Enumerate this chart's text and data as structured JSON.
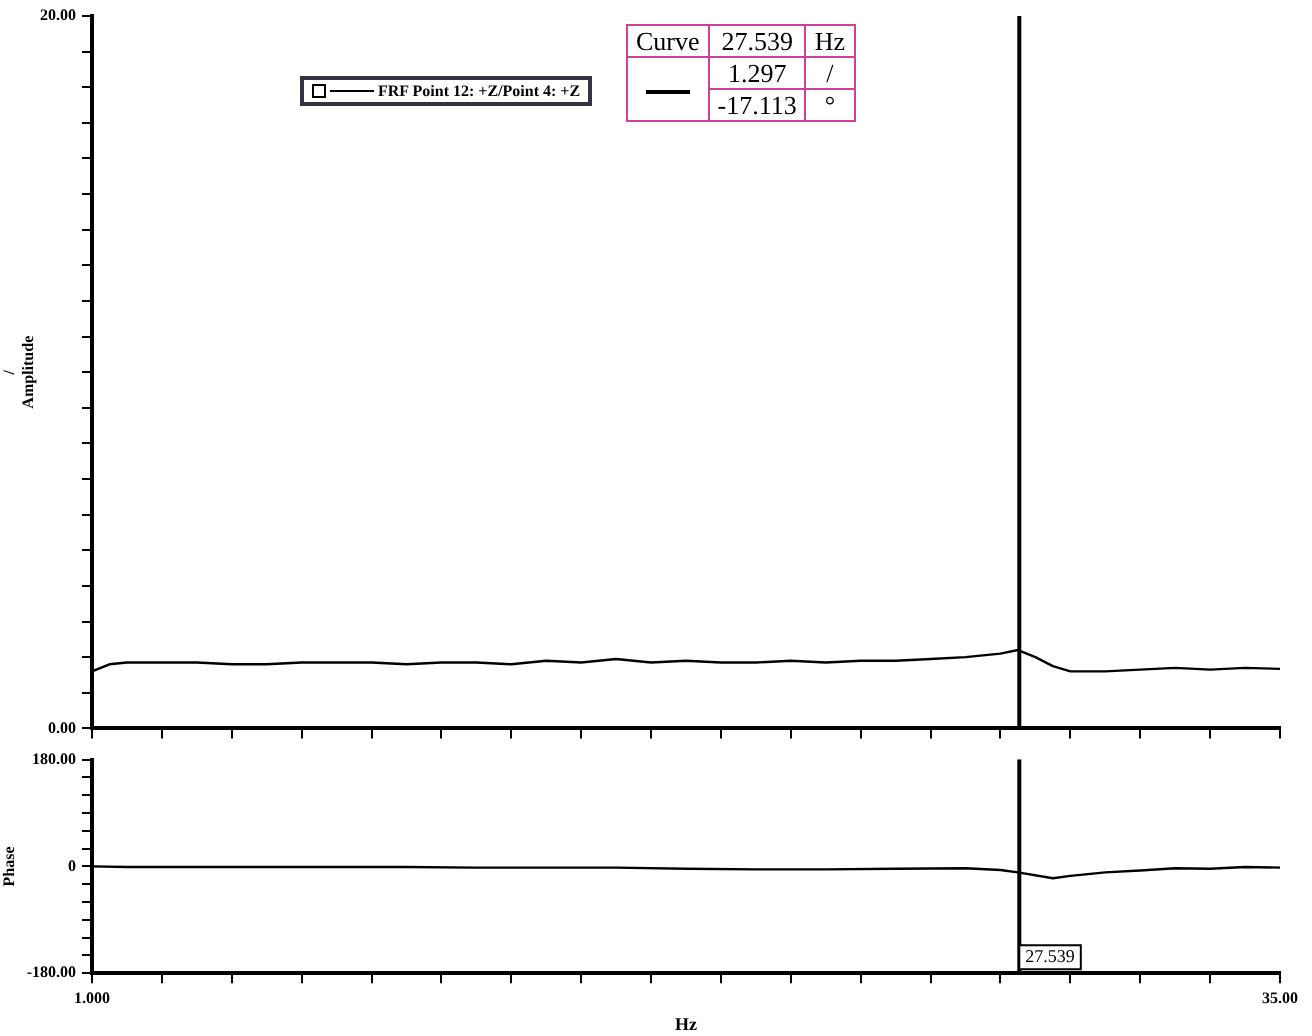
{
  "chart_data": [
    {
      "type": "line",
      "ylabel": "/\nAmplitude",
      "xlim": [
        1,
        35
      ],
      "ylim": [
        0,
        20
      ],
      "xticks": [
        {
          "value": 1,
          "label": null
        },
        {
          "value": 3,
          "label": null
        },
        {
          "value": 5,
          "label": null
        },
        {
          "value": 7,
          "label": null
        },
        {
          "value": 9,
          "label": null
        },
        {
          "value": 11,
          "label": null
        },
        {
          "value": 13,
          "label": null
        },
        {
          "value": 15,
          "label": null
        },
        {
          "value": 17,
          "label": null
        },
        {
          "value": 19,
          "label": null
        },
        {
          "value": 21,
          "label": null
        },
        {
          "value": 23,
          "label": null
        },
        {
          "value": 25,
          "label": null
        },
        {
          "value": 27,
          "label": null
        },
        {
          "value": 29,
          "label": null
        },
        {
          "value": 31,
          "label": null
        },
        {
          "value": 33,
          "label": null
        },
        {
          "value": 35,
          "label": null
        }
      ],
      "yticks": [
        {
          "value": 0,
          "label": "0.00"
        },
        {
          "value": 1,
          "label": null
        },
        {
          "value": 2,
          "label": null
        },
        {
          "value": 3,
          "label": null
        },
        {
          "value": 4,
          "label": null
        },
        {
          "value": 5,
          "label": null
        },
        {
          "value": 6,
          "label": null
        },
        {
          "value": 7,
          "label": null
        },
        {
          "value": 8,
          "label": null
        },
        {
          "value": 9,
          "label": null
        },
        {
          "value": 10,
          "label": null
        },
        {
          "value": 11,
          "label": null
        },
        {
          "value": 12,
          "label": null
        },
        {
          "value": 13,
          "label": null
        },
        {
          "value": 14,
          "label": null
        },
        {
          "value": 15,
          "label": null
        },
        {
          "value": 16,
          "label": null
        },
        {
          "value": 17,
          "label": null
        },
        {
          "value": 18,
          "label": null
        },
        {
          "value": 19,
          "label": null
        },
        {
          "value": 20,
          "label": "20.00"
        }
      ],
      "tick_labels": "y",
      "grid": false,
      "legend": "top left",
      "marker": "none",
      "line_style": "solid",
      "x": [
        1,
        1.5,
        2,
        3,
        4,
        5,
        6,
        7,
        8,
        9,
        10,
        11,
        12,
        13,
        14,
        15,
        16,
        17,
        18,
        19,
        20,
        21,
        22,
        23,
        24,
        25,
        26,
        27,
        27.5,
        28,
        28.5,
        29,
        30,
        31,
        32,
        33,
        34,
        35
      ],
      "series": [
        {
          "name": "FRF Point 12: +Z/Point 4: +Z",
          "color": "#000000",
          "values": [
            1.6,
            1.8,
            1.85,
            1.85,
            1.85,
            1.8,
            1.8,
            1.85,
            1.85,
            1.85,
            1.8,
            1.85,
            1.85,
            1.8,
            1.9,
            1.85,
            1.95,
            1.85,
            1.9,
            1.85,
            1.85,
            1.9,
            1.85,
            1.9,
            1.9,
            1.95,
            2.0,
            2.1,
            2.2,
            2.0,
            1.75,
            1.6,
            1.6,
            1.65,
            1.7,
            1.65,
            1.7,
            1.67
          ]
        }
      ],
      "ref_lines": [
        {
          "axis": "x",
          "value": 27.539,
          "color": "#000000"
        }
      ],
      "annotations": [
        "Curve",
        "27.539",
        "Hz",
        "1.297",
        "/",
        "-17.113",
        "°"
      ]
    },
    {
      "type": "line",
      "ylabel": "Phase",
      "xlabel": "Hz",
      "xlim": [
        1,
        35
      ],
      "ylim": [
        -180,
        180
      ],
      "xticks": [
        {
          "value": 1,
          "label": "1.000"
        },
        {
          "value": 3,
          "label": null
        },
        {
          "value": 5,
          "label": null
        },
        {
          "value": 7,
          "label": null
        },
        {
          "value": 9,
          "label": null
        },
        {
          "value": 11,
          "label": null
        },
        {
          "value": 13,
          "label": null
        },
        {
          "value": 15,
          "label": null
        },
        {
          "value": 17,
          "label": null
        },
        {
          "value": 19,
          "label": null
        },
        {
          "value": 21,
          "label": null
        },
        {
          "value": 23,
          "label": null
        },
        {
          "value": 25,
          "label": null
        },
        {
          "value": 27,
          "label": null
        },
        {
          "value": 29,
          "label": null
        },
        {
          "value": 31,
          "label": null
        },
        {
          "value": 33,
          "label": null
        },
        {
          "value": 35,
          "label": "35.00"
        }
      ],
      "yticks": [
        {
          "value": -180,
          "label": "-180.00"
        },
        {
          "value": -150,
          "label": null
        },
        {
          "value": -120,
          "label": null
        },
        {
          "value": -90,
          "label": null
        },
        {
          "value": -60,
          "label": null
        },
        {
          "value": -30,
          "label": null
        },
        {
          "value": 0,
          "label": "0"
        },
        {
          "value": 30,
          "label": null
        },
        {
          "value": 60,
          "label": null
        },
        {
          "value": 90,
          "label": null
        },
        {
          "value": 120,
          "label": null
        },
        {
          "value": 150,
          "label": null
        },
        {
          "value": 180,
          "label": "180.00"
        }
      ],
      "grid": false,
      "marker": "none",
      "line_style": "solid",
      "x": [
        1,
        2,
        4,
        6,
        8,
        10,
        12,
        14,
        16,
        18,
        20,
        22,
        24,
        26,
        27,
        27.5,
        28.5,
        29,
        30,
        31,
        32,
        33,
        34,
        35
      ],
      "series": [
        {
          "color": "#000000",
          "values": [
            0,
            -1,
            -1,
            -1,
            -1,
            -1,
            -2,
            -2,
            -2,
            -4,
            -5,
            -5,
            -4,
            -3,
            -6,
            -10,
            -20,
            -16,
            -10,
            -7,
            -3,
            -4,
            -1,
            -2
          ]
        }
      ],
      "ref_lines": [
        {
          "axis": "x",
          "value": 27.539,
          "label": "27.539",
          "color": "#000000"
        }
      ]
    }
  ]
}
